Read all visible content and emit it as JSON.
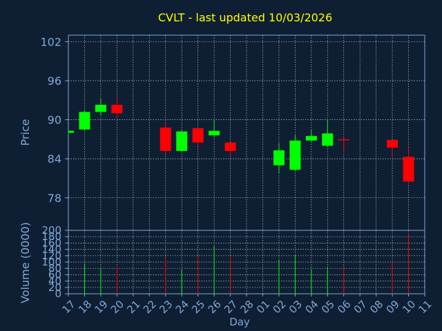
{
  "chart_data": [
    {
      "type": "candlestick",
      "title": "CVLT - last updated 10/03/2026",
      "ylabel": "Price",
      "xlabel": "Day",
      "ylim": [
        73,
        103
      ],
      "yticks": [
        78,
        84,
        90,
        96,
        102
      ],
      "grid": true,
      "categories": [
        "17",
        "18",
        "19",
        "20",
        "21",
        "22",
        "23",
        "24",
        "25",
        "26",
        "27",
        "28",
        "01",
        "02",
        "03",
        "04",
        "05",
        "06",
        "07",
        "08",
        "09",
        "10",
        "11"
      ],
      "candles": [
        {
          "day": "17",
          "open": 88.0,
          "high": 88.3,
          "low": 87.7,
          "close": 88.3
        },
        {
          "day": "18",
          "open": 88.5,
          "high": 91.4,
          "low": 88.3,
          "close": 91.2
        },
        {
          "day": "19",
          "open": 91.2,
          "high": 93.2,
          "low": 90.6,
          "close": 92.3
        },
        {
          "day": "20",
          "open": 92.3,
          "high": 93.5,
          "low": 90.3,
          "close": 91.0
        },
        {
          "day": "23",
          "open": 88.8,
          "high": 89.4,
          "low": 84.9,
          "close": 85.2
        },
        {
          "day": "24",
          "open": 85.2,
          "high": 88.4,
          "low": 85.0,
          "close": 88.2
        },
        {
          "day": "25",
          "open": 88.7,
          "high": 88.9,
          "low": 85.9,
          "close": 86.5
        },
        {
          "day": "26",
          "open": 87.6,
          "high": 89.9,
          "low": 87.4,
          "close": 88.3
        },
        {
          "day": "27",
          "open": 86.5,
          "high": 86.5,
          "low": 84.5,
          "close": 85.2
        },
        {
          "day": "02",
          "open": 83.0,
          "high": 86.4,
          "low": 81.8,
          "close": 85.3
        },
        {
          "day": "03",
          "open": 82.3,
          "high": 87.6,
          "low": 82.1,
          "close": 86.8
        },
        {
          "day": "04",
          "open": 86.8,
          "high": 88.5,
          "low": 86.5,
          "close": 87.5
        },
        {
          "day": "05",
          "open": 86.0,
          "high": 90.0,
          "low": 85.8,
          "close": 87.9
        },
        {
          "day": "06",
          "open": 87.0,
          "high": 87.2,
          "low": 85.1,
          "close": 86.9
        },
        {
          "day": "09",
          "open": 86.9,
          "high": 86.9,
          "low": 84.3,
          "close": 85.7
        },
        {
          "day": "10",
          "open": 84.3,
          "high": 85.8,
          "low": 80.2,
          "close": 80.5
        }
      ],
      "colors": {
        "up": "#00ff00",
        "down": "#ff0000",
        "background": "#0f1f33",
        "axis": "#7fa8d8",
        "title": "#ffff00",
        "grid": "#ffffff"
      }
    },
    {
      "type": "bar",
      "ylabel": "Volume (0000)",
      "xlabel": "Day",
      "ylim": [
        0,
        200
      ],
      "yticks": [
        0,
        20,
        40,
        60,
        80,
        100,
        120,
        140,
        160,
        180,
        200
      ],
      "grid": true,
      "categories": [
        "17",
        "18",
        "19",
        "20",
        "21",
        "22",
        "23",
        "24",
        "25",
        "26",
        "27",
        "28",
        "01",
        "02",
        "03",
        "04",
        "05",
        "06",
        "07",
        "08",
        "09",
        "10",
        "11"
      ],
      "values": [
        {
          "day": "18",
          "value": 95,
          "direction": "up"
        },
        {
          "day": "19",
          "value": 80,
          "direction": "up"
        },
        {
          "day": "20",
          "value": 85,
          "direction": "down"
        },
        {
          "day": "23",
          "value": 110,
          "direction": "down"
        },
        {
          "day": "24",
          "value": 75,
          "direction": "up"
        },
        {
          "day": "25",
          "value": 120,
          "direction": "down"
        },
        {
          "day": "26",
          "value": 150,
          "direction": "up"
        },
        {
          "day": "27",
          "value": 118,
          "direction": "down"
        },
        {
          "day": "02",
          "value": 108,
          "direction": "up"
        },
        {
          "day": "03",
          "value": 122,
          "direction": "up"
        },
        {
          "day": "04",
          "value": 78,
          "direction": "up"
        },
        {
          "day": "05",
          "value": 85,
          "direction": "up"
        },
        {
          "day": "06",
          "value": 85,
          "direction": "down"
        },
        {
          "day": "09",
          "value": 100,
          "direction": "down"
        },
        {
          "day": "10",
          "value": 192,
          "direction": "down"
        }
      ]
    }
  ]
}
